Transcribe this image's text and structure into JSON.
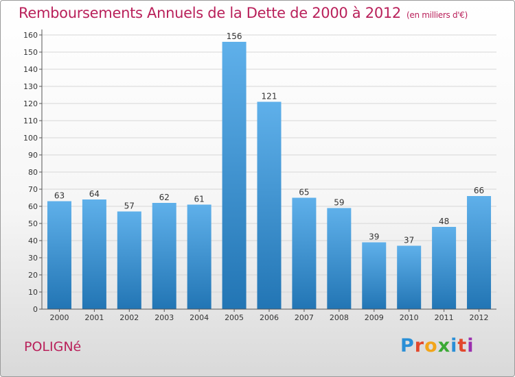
{
  "title": "Remboursements Annuels de la Dette de 2000 à 2012",
  "subtitle": "(en milliers d'€)",
  "city": "POLIGNé",
  "logo": {
    "letters": [
      "P",
      "r",
      "o",
      "x",
      "i",
      "t",
      "i"
    ],
    "colors": [
      "#2a8fd6",
      "#e2482c",
      "#f2a51a",
      "#3aa935",
      "#2a8fd6",
      "#e2482c",
      "#9b2fae"
    ]
  },
  "colors": {
    "bar_top": "#5fb0ea",
    "bar_bottom": "#2275b4",
    "title": "#b9205a"
  },
  "chart_data": {
    "type": "bar",
    "title": "Remboursements Annuels de la Dette de 2000 à 2012",
    "subtitle": "(en milliers d'€)",
    "xlabel": "",
    "ylabel": "",
    "categories": [
      "2000",
      "2001",
      "2002",
      "2003",
      "2004",
      "2005",
      "2006",
      "2007",
      "2008",
      "2009",
      "2010",
      "2011",
      "2012"
    ],
    "values": [
      63,
      64,
      57,
      62,
      61,
      156,
      121,
      65,
      59,
      39,
      37,
      48,
      66
    ],
    "ylim": [
      0,
      160
    ],
    "yticks": [
      0,
      10,
      20,
      30,
      40,
      50,
      60,
      70,
      80,
      90,
      100,
      110,
      120,
      130,
      140,
      150,
      160
    ],
    "grid": true
  }
}
